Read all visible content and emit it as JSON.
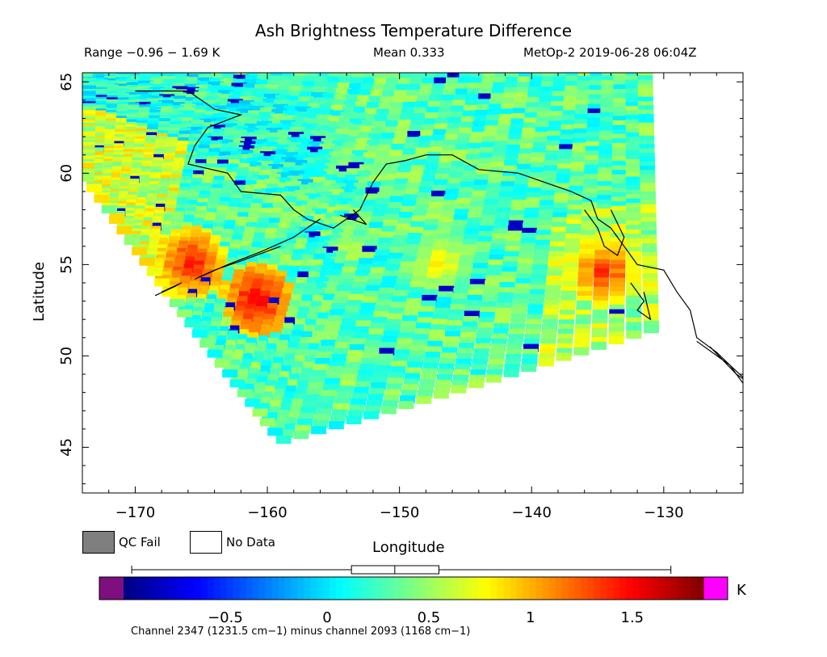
{
  "chart_data": {
    "type": "heatmap",
    "title": "Ash Brightness Temperature Difference",
    "subtitle_left": "Range −0.96 − 1.69 K",
    "subtitle_center": "Mean 0.333",
    "subtitle_right": "MetOp-2 2019-06-28 06:04Z",
    "xlabel": "Longitude",
    "ylabel": "Latitude",
    "xlim": [
      -174,
      -124
    ],
    "ylim": [
      42.5,
      65.5
    ],
    "x_ticks": [
      -170,
      -160,
      -150,
      -140,
      -130
    ],
    "y_ticks": [
      45,
      50,
      55,
      60,
      65
    ],
    "x_tick_labels": [
      "−170",
      "−160",
      "−150",
      "−140",
      "−130"
    ],
    "y_tick_labels": [
      "45",
      "50",
      "55",
      "60",
      "65"
    ],
    "swath_corners_lonlat": [
      [
        -174,
        60
      ],
      [
        -174,
        65.5
      ],
      [
        -131,
        65.5
      ],
      [
        -130.3,
        51.5
      ],
      [
        -159,
        46
      ]
    ],
    "hotspots": [
      {
        "lon": -166,
        "lat": 55,
        "value": 1.5
      },
      {
        "lon": -161,
        "lat": 53,
        "value": 1.6
      },
      {
        "lon": -134.5,
        "lat": 54.5,
        "value": 1.4
      },
      {
        "lon": -147,
        "lat": 55,
        "value": 0.9
      }
    ],
    "colorbar": {
      "min": -1.0,
      "max": 1.85,
      "ticks": [
        -0.5,
        0,
        0.5,
        1,
        1.5
      ],
      "tick_labels": [
        "−0.5",
        "0",
        "0.5",
        "1",
        "1.5"
      ],
      "unit": "K",
      "range_min": -0.96,
      "range_max": 1.69,
      "mean": 0.333
    },
    "legend": [
      {
        "label": "QC Fail",
        "color": "#7f7f7f"
      },
      {
        "label": "No Data",
        "color": "#ffffff"
      }
    ],
    "footnote": "Channel 2347 (1231.5 cm−1) minus channel 2093 (1168 cm−1)"
  }
}
